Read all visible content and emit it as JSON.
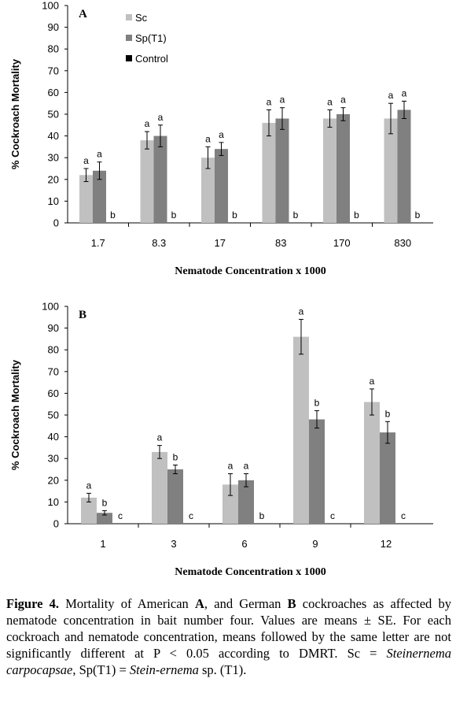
{
  "chart_data": [
    {
      "type": "bar",
      "panel": "A",
      "categories": [
        "1.7",
        "8.3",
        "17",
        "83",
        "170",
        "830"
      ],
      "series": [
        {
          "name": "Sc",
          "color": "#c0c0c0",
          "values": [
            22,
            38,
            30,
            46,
            48,
            48
          ],
          "errors": [
            3,
            4,
            5,
            6,
            4,
            7
          ],
          "letters": [
            "a",
            "a",
            "a",
            "a",
            "a",
            "a"
          ]
        },
        {
          "name": "Sp(T1)",
          "color": "#808080",
          "values": [
            24,
            40,
            34,
            48,
            50,
            52
          ],
          "errors": [
            4,
            5,
            3,
            5,
            3,
            4
          ],
          "letters": [
            "a",
            "a",
            "a",
            "a",
            "a",
            "a"
          ]
        },
        {
          "name": "Control",
          "color": "#000000",
          "values": [
            0,
            0,
            0,
            0,
            0,
            0
          ],
          "errors": [
            0,
            0,
            0,
            0,
            0,
            0
          ],
          "letters": [
            "b",
            "b",
            "b",
            "b",
            "b",
            "b"
          ]
        }
      ],
      "ylim": [
        0,
        100
      ],
      "yticks": [
        "0",
        "10",
        "20",
        "30",
        "40",
        "50",
        "60",
        "70",
        "80",
        "90",
        "100"
      ],
      "ylabel": "% Cockroach Mortality",
      "xlabel": "Nematode Concentration x 1000",
      "legend_position": "top-left",
      "grid": false
    },
    {
      "type": "bar",
      "panel": "B",
      "categories": [
        "1",
        "3",
        "6",
        "9",
        "12"
      ],
      "series": [
        {
          "name": "Sc",
          "color": "#c0c0c0",
          "values": [
            12,
            33,
            18,
            86,
            56
          ],
          "errors": [
            2,
            3,
            5,
            8,
            6
          ],
          "letters": [
            "a",
            "a",
            "a",
            "a",
            "a"
          ]
        },
        {
          "name": "Sp(T1)",
          "color": "#808080",
          "values": [
            5,
            25,
            20,
            48,
            42
          ],
          "errors": [
            1,
            2,
            3,
            4,
            5
          ],
          "letters": [
            "b",
            "b",
            "a",
            "b",
            "b"
          ]
        },
        {
          "name": "Control",
          "color": "#000000",
          "values": [
            0,
            0,
            0,
            0,
            0
          ],
          "errors": [
            0,
            0,
            0,
            0,
            0
          ],
          "letters": [
            "c",
            "c",
            "b",
            "c",
            "c"
          ]
        }
      ],
      "ylim": [
        0,
        100
      ],
      "yticks": [
        "0",
        "10",
        "20",
        "30",
        "40",
        "50",
        "60",
        "70",
        "80",
        "90",
        "100"
      ],
      "ylabel": "% Cockroach Mortality",
      "xlabel": "Nematode Concentration x 1000",
      "grid": false
    }
  ],
  "caption": {
    "label": "Figure 4.",
    "p1": " Mortality of American ",
    "a": "A",
    "p2": ", and German ",
    "b": "B",
    "p3": " cockroaches as affected by nematode concentration in bait number four. Values are means ± SE. For each cockroach and nematode concentration, means followed by the same letter are not significantly different at P < 0.05 according to DMRT. Sc = ",
    "sc_name": "Steinernema carpocapsae",
    "p4": ", Sp(T1) = ",
    "sp_name": "Stein-ernema",
    "p5": " sp. (T1)."
  }
}
